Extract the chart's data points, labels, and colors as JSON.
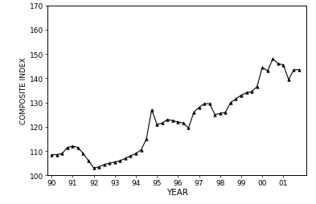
{
  "x": [
    1990.0,
    1990.25,
    1990.5,
    1990.75,
    1991.0,
    1991.25,
    1991.5,
    1991.75,
    1992.0,
    1992.25,
    1992.5,
    1992.75,
    1993.0,
    1993.25,
    1993.5,
    1993.75,
    1994.0,
    1994.25,
    1994.5,
    1994.75,
    1995.0,
    1995.25,
    1995.5,
    1995.75,
    1996.0,
    1996.25,
    1996.5,
    1996.75,
    1997.0,
    1997.25,
    1997.5,
    1997.75,
    1998.0,
    1998.25,
    1998.5,
    1998.75,
    1999.0,
    1999.25,
    1999.5,
    1999.75,
    2000.0,
    2000.25,
    2000.5,
    2000.75,
    2001.0,
    2001.25,
    2001.5,
    2001.75
  ],
  "y": [
    108.5,
    108.5,
    109.0,
    111.5,
    112.0,
    111.5,
    109.0,
    106.0,
    103.0,
    103.5,
    104.5,
    105.0,
    105.5,
    106.0,
    107.0,
    108.0,
    109.0,
    110.5,
    115.0,
    127.0,
    121.0,
    121.5,
    123.0,
    122.5,
    122.0,
    121.5,
    119.5,
    126.0,
    128.0,
    129.5,
    129.5,
    125.0,
    125.5,
    126.0,
    130.0,
    131.5,
    133.0,
    134.0,
    134.5,
    136.5,
    144.5,
    143.0,
    148.0,
    146.0,
    145.5,
    139.5,
    143.5,
    143.5
  ],
  "xlim": [
    1989.8,
    2002.1
  ],
  "ylim": [
    100,
    170
  ],
  "xticks": [
    1990,
    1991,
    1992,
    1993,
    1994,
    1995,
    1996,
    1997,
    1998,
    1999,
    2000,
    2001
  ],
  "xticklabels": [
    "90",
    "91",
    "92",
    "93",
    "94",
    "95",
    "96",
    "97",
    "98",
    "99",
    "00",
    "01"
  ],
  "yticks": [
    100,
    110,
    120,
    130,
    140,
    150,
    160,
    170
  ],
  "xlabel": "YEAR",
  "ylabel": "COMPOSITE INDEX",
  "line_color": "#000000",
  "marker": "^",
  "marker_size": 2.5,
  "line_width": 0.8,
  "bg_color": "#ffffff",
  "fig_bg_color": "#ffffff"
}
